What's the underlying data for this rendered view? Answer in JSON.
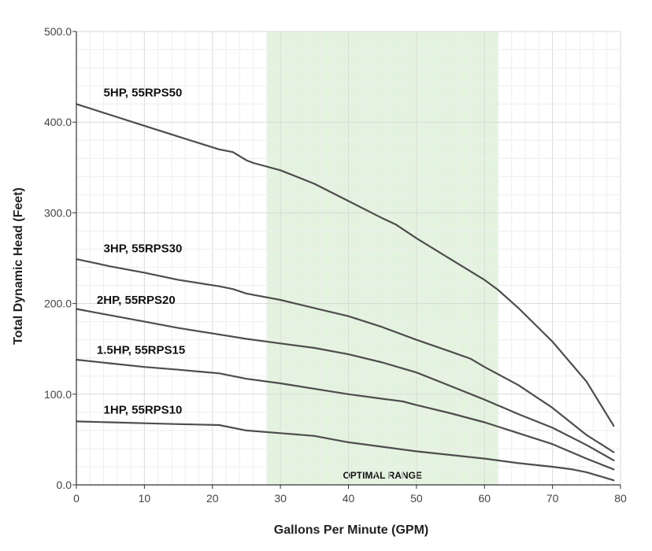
{
  "chart_data": {
    "type": "line",
    "title": "",
    "xlabel": "Gallons Per Minute (GPM)",
    "ylabel": "Total Dynamic Head (Feet)",
    "xlim": [
      0,
      80
    ],
    "ylim": [
      0,
      500
    ],
    "x_ticks": [
      "0",
      "10",
      "20",
      "30",
      "40",
      "50",
      "60",
      "70",
      "80"
    ],
    "y_ticks": [
      "0.0",
      "100.0",
      "200.0",
      "300.0",
      "400.0",
      "500.0"
    ],
    "grid": true,
    "band": {
      "label": "OPTIMAL RANGE",
      "x_start": 28,
      "x_end": 62,
      "color": "#e4f3df"
    },
    "line_color": "#4d4d4d",
    "series": [
      {
        "name": "5HP, 55RPS50",
        "points": [
          [
            0,
            420
          ],
          [
            5,
            408
          ],
          [
            10,
            396
          ],
          [
            15,
            384
          ],
          [
            21,
            370
          ],
          [
            23,
            367
          ],
          [
            25,
            358
          ],
          [
            26,
            355
          ],
          [
            30,
            347
          ],
          [
            35,
            332
          ],
          [
            40,
            313
          ],
          [
            45,
            294
          ],
          [
            47,
            287
          ],
          [
            50,
            272
          ],
          [
            55,
            249
          ],
          [
            60,
            226
          ],
          [
            62,
            215
          ],
          [
            65,
            195
          ],
          [
            70,
            158
          ],
          [
            75,
            114
          ],
          [
            79,
            65
          ]
        ]
      },
      {
        "name": "3HP, 55RPS30",
        "points": [
          [
            0,
            249
          ],
          [
            5,
            241
          ],
          [
            10,
            234
          ],
          [
            15,
            226
          ],
          [
            21,
            219
          ],
          [
            23,
            216
          ],
          [
            25,
            211
          ],
          [
            30,
            204
          ],
          [
            35,
            195
          ],
          [
            40,
            186
          ],
          [
            45,
            174
          ],
          [
            50,
            160
          ],
          [
            55,
            147
          ],
          [
            58,
            139
          ],
          [
            60,
            130
          ],
          [
            65,
            110
          ],
          [
            70,
            85
          ],
          [
            75,
            55
          ],
          [
            79,
            36
          ]
        ]
      },
      {
        "name": "2HP, 55RPS20",
        "points": [
          [
            0,
            194
          ],
          [
            5,
            187
          ],
          [
            10,
            180
          ],
          [
            15,
            173
          ],
          [
            20,
            167
          ],
          [
            25,
            161
          ],
          [
            30,
            156
          ],
          [
            35,
            151
          ],
          [
            40,
            144
          ],
          [
            45,
            135
          ],
          [
            50,
            124
          ],
          [
            55,
            109
          ],
          [
            60,
            94
          ],
          [
            65,
            78
          ],
          [
            70,
            63
          ],
          [
            75,
            44
          ],
          [
            79,
            27
          ]
        ]
      },
      {
        "name": "1.5HP, 55RPS15",
        "points": [
          [
            0,
            138
          ],
          [
            5,
            134
          ],
          [
            10,
            130
          ],
          [
            15,
            127
          ],
          [
            21,
            123
          ],
          [
            25,
            117
          ],
          [
            30,
            112
          ],
          [
            35,
            106
          ],
          [
            40,
            100
          ],
          [
            45,
            95
          ],
          [
            48,
            92
          ],
          [
            50,
            88
          ],
          [
            55,
            79
          ],
          [
            60,
            69
          ],
          [
            65,
            57
          ],
          [
            70,
            45
          ],
          [
            75,
            29
          ],
          [
            79,
            17
          ]
        ]
      },
      {
        "name": "1HP, 55RPS10",
        "points": [
          [
            0,
            70
          ],
          [
            5,
            69
          ],
          [
            10,
            68
          ],
          [
            15,
            67
          ],
          [
            21,
            66
          ],
          [
            25,
            60
          ],
          [
            30,
            57
          ],
          [
            35,
            54
          ],
          [
            40,
            47
          ],
          [
            45,
            42
          ],
          [
            50,
            37
          ],
          [
            55,
            33
          ],
          [
            60,
            29
          ],
          [
            65,
            24
          ],
          [
            70,
            20
          ],
          [
            73,
            17
          ],
          [
            75,
            14
          ],
          [
            79,
            5
          ]
        ]
      }
    ],
    "series_label_positions": [
      {
        "name": "5HP, 55RPS50",
        "x": 4,
        "y": 425
      },
      {
        "name": "3HP, 55RPS30",
        "x": 4,
        "y": 253
      },
      {
        "name": "2HP, 55RPS20",
        "x": 3,
        "y": 196
      },
      {
        "name": "1.5HP, 55RPS15",
        "x": 3,
        "y": 141
      },
      {
        "name": "1HP, 55RPS10",
        "x": 4,
        "y": 75
      }
    ]
  }
}
